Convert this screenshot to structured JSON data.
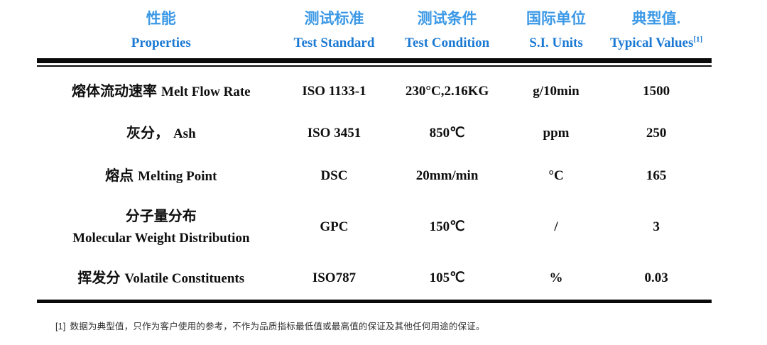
{
  "colors": {
    "header_chinese": "#3c99e6",
    "header_english": "#1b79d4",
    "body_text": "#0f0f0f",
    "rule": "#0a0a0a",
    "footnote_text": "#2e2e2e",
    "background": "#ffffff"
  },
  "table": {
    "headers": [
      {
        "zh": "性能",
        "en": "Properties"
      },
      {
        "zh": "测试标准",
        "en": "Test Standard"
      },
      {
        "zh": "测试条件",
        "en": "Test Condition"
      },
      {
        "zh": "国际单位",
        "en": "S.I. Units"
      },
      {
        "zh": "典型值.",
        "en": "Typical Values",
        "sup": "[1]"
      }
    ],
    "rows": [
      {
        "property_zh": "熔体流动速率",
        "property_en": "Melt Flow Rate",
        "standard": "ISO 1133-1",
        "condition": "230°C,2.16KG",
        "unit": "g/10min",
        "value": "1500"
      },
      {
        "property_zh": "灰分，",
        "property_en": "Ash",
        "standard": "ISO 3451",
        "condition": "850℃",
        "unit": "ppm",
        "value": "250"
      },
      {
        "property_zh": "熔点",
        "property_en": "Melting Point",
        "standard": "DSC",
        "condition": "20mm/min",
        "unit": "°C",
        "value": "165"
      },
      {
        "property_zh": "分子量分布",
        "property_en": "Molecular Weight Distribution",
        "standard": "GPC",
        "condition": "150℃",
        "unit": "/",
        "value": "3"
      },
      {
        "property_zh": "挥发分",
        "property_en": "Volatile Constituents",
        "standard": "ISO787",
        "condition": "105℃",
        "unit": "%",
        "value": "0.03"
      }
    ]
  },
  "footnote": {
    "marker": "[1]",
    "text": "数据为典型值，只作为客户使用的参考，不作为品质指标最低值或最高值的保证及其他任何用途的保证。"
  }
}
